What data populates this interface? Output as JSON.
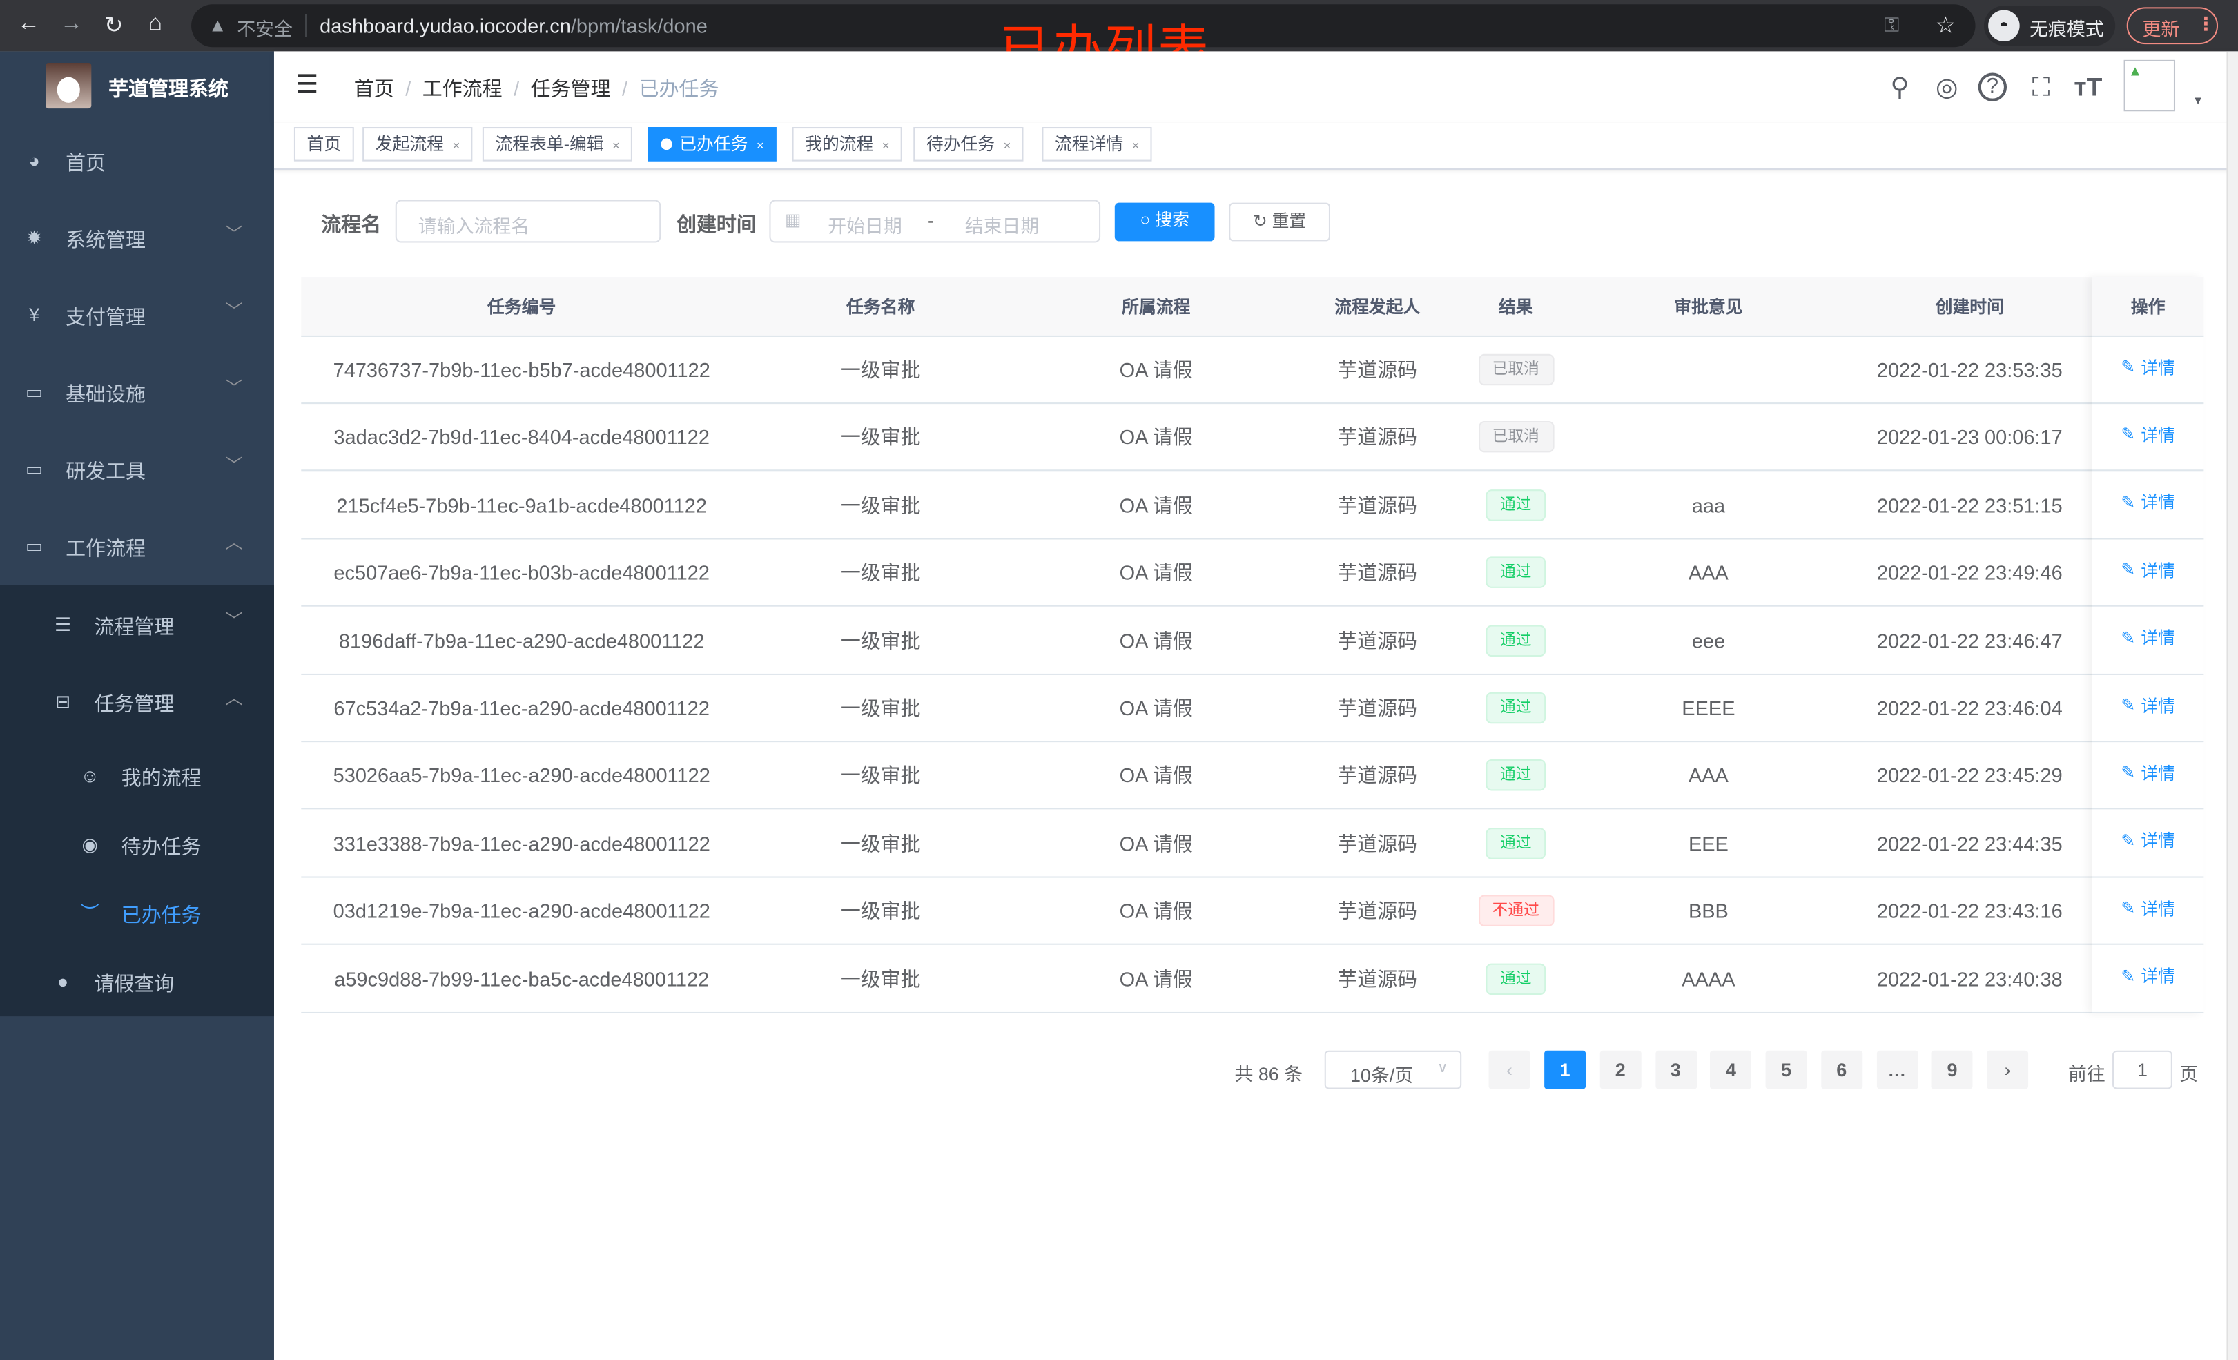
{
  "browser": {
    "insecure_label": "不安全",
    "url_host": "dashboard.yudao.iocoder.cn",
    "url_path": "/bpm/task/done",
    "incognito_label": "无痕模式",
    "update_label": "更新"
  },
  "annotation": "已办列表",
  "sidebar": {
    "title": "芋道管理系统",
    "items": [
      {
        "label": "首页",
        "icon": "dashboard-icon"
      },
      {
        "label": "系统管理",
        "icon": "gear-icon"
      },
      {
        "label": "支付管理",
        "icon": "yen-icon"
      },
      {
        "label": "基础设施",
        "icon": "monitor-icon"
      },
      {
        "label": "研发工具",
        "icon": "toolbox-icon"
      },
      {
        "label": "工作流程",
        "icon": "toolbox-icon"
      }
    ],
    "sub_items": [
      {
        "label": "流程管理",
        "icon": "list-icon"
      },
      {
        "label": "任务管理",
        "icon": "task-icon"
      }
    ],
    "task_items": [
      {
        "label": "我的流程",
        "icon": "face-icon"
      },
      {
        "label": "待办任务",
        "icon": "eye-icon"
      },
      {
        "label": "已办任务",
        "icon": "eye-closed-icon"
      }
    ],
    "leave_item": {
      "label": "请假查询",
      "icon": "user-icon"
    },
    "active_color": "#409eff"
  },
  "breadcrumb": [
    "首页",
    "工作流程",
    "任务管理",
    "已办任务"
  ],
  "tags": [
    {
      "label": "首页",
      "closable": false
    },
    {
      "label": "发起流程",
      "closable": true
    },
    {
      "label": "流程表单-编辑",
      "closable": true
    },
    {
      "label": "已办任务",
      "closable": true,
      "active": true
    },
    {
      "label": "我的流程",
      "closable": true
    },
    {
      "label": "待办任务",
      "closable": true
    },
    {
      "label": "流程详情",
      "closable": true
    }
  ],
  "search": {
    "name_label": "流程名",
    "name_placeholder": "请输入流程名",
    "time_label": "创建时间",
    "start_placeholder": "开始日期",
    "range_sep": "-",
    "end_placeholder": "结束日期",
    "search_button": "搜索",
    "reset_button": "重置"
  },
  "table": {
    "columns": [
      "任务编号",
      "任务名称",
      "所属流程",
      "流程发起人",
      "结果",
      "审批意见",
      "创建时间",
      "操作"
    ],
    "action_label": "详情",
    "rows": [
      {
        "id": "74736737-7b9b-11ec-b5b7-acde48001122",
        "name": "一级审批",
        "process": "OA 请假",
        "initiator": "芋道源码",
        "result": "已取消",
        "result_type": "info",
        "comment": "",
        "time": "2022-01-22 23:53:35"
      },
      {
        "id": "3adac3d2-7b9d-11ec-8404-acde48001122",
        "name": "一级审批",
        "process": "OA 请假",
        "initiator": "芋道源码",
        "result": "已取消",
        "result_type": "info",
        "comment": "",
        "time": "2022-01-23 00:06:17"
      },
      {
        "id": "215cf4e5-7b9b-11ec-9a1b-acde48001122",
        "name": "一级审批",
        "process": "OA 请假",
        "initiator": "芋道源码",
        "result": "通过",
        "result_type": "success",
        "comment": "aaa",
        "time": "2022-01-22 23:51:15"
      },
      {
        "id": "ec507ae6-7b9a-11ec-b03b-acde48001122",
        "name": "一级审批",
        "process": "OA 请假",
        "initiator": "芋道源码",
        "result": "通过",
        "result_type": "success",
        "comment": "AAA",
        "time": "2022-01-22 23:49:46"
      },
      {
        "id": "8196daff-7b9a-11ec-a290-acde48001122",
        "name": "一级审批",
        "process": "OA 请假",
        "initiator": "芋道源码",
        "result": "通过",
        "result_type": "success",
        "comment": "eee",
        "time": "2022-01-22 23:46:47"
      },
      {
        "id": "67c534a2-7b9a-11ec-a290-acde48001122",
        "name": "一级审批",
        "process": "OA 请假",
        "initiator": "芋道源码",
        "result": "通过",
        "result_type": "success",
        "comment": "EEEE",
        "time": "2022-01-22 23:46:04"
      },
      {
        "id": "53026aa5-7b9a-11ec-a290-acde48001122",
        "name": "一级审批",
        "process": "OA 请假",
        "initiator": "芋道源码",
        "result": "通过",
        "result_type": "success",
        "comment": "AAA",
        "time": "2022-01-22 23:45:29"
      },
      {
        "id": "331e3388-7b9a-11ec-a290-acde48001122",
        "name": "一级审批",
        "process": "OA 请假",
        "initiator": "芋道源码",
        "result": "通过",
        "result_type": "success",
        "comment": "EEE",
        "time": "2022-01-22 23:44:35"
      },
      {
        "id": "03d1219e-7b9a-11ec-a290-acde48001122",
        "name": "一级审批",
        "process": "OA 请假",
        "initiator": "芋道源码",
        "result": "不通过",
        "result_type": "danger",
        "comment": "BBB",
        "time": "2022-01-22 23:43:16"
      },
      {
        "id": "a59c9d88-7b99-11ec-ba5c-acde48001122",
        "name": "一级审批",
        "process": "OA 请假",
        "initiator": "芋道源码",
        "result": "通过",
        "result_type": "success",
        "comment": "AAAA",
        "time": "2022-01-22 23:40:38"
      }
    ]
  },
  "pagination": {
    "total_text": "共 86 条",
    "page_size": "10条/页",
    "pages": [
      "1",
      "2",
      "3",
      "4",
      "5",
      "6",
      "…",
      "9"
    ],
    "current": "1",
    "goto_label": "前往",
    "goto_value": "1",
    "page_suffix": "页"
  },
  "colors": {
    "primary": "#1890ff",
    "sidebar_bg": "#304156",
    "submenu_bg": "#1f2d3d",
    "success": "#13ce66",
    "danger": "#ff4949",
    "info": "#909399"
  }
}
